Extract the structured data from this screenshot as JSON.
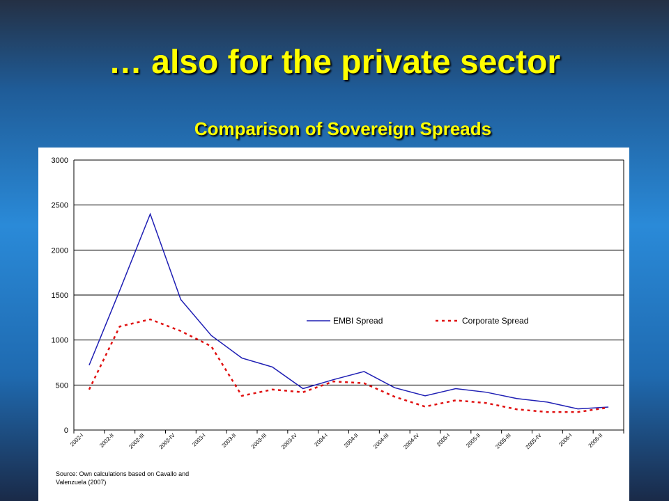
{
  "slide_title": "… also for the private sector",
  "chart_data": {
    "type": "line",
    "title": "Comparison of Sovereign Spreads",
    "categories": [
      "2002-I",
      "2002-II",
      "2002-III",
      "2002-IV",
      "2003-I",
      "2003-II",
      "2003-III",
      "2003-IV",
      "2004-I",
      "2004-II",
      "2004-III",
      "2004-IV",
      "2005-I",
      "2005-II",
      "2005-III",
      "2005-IV",
      "2006-I",
      "2006-II"
    ],
    "series": [
      {
        "name": "EMBI Spread",
        "color": "#1f1fb4",
        "dash": false,
        "values": [
          720,
          1550,
          2400,
          1450,
          1050,
          800,
          700,
          460,
          560,
          650,
          470,
          380,
          460,
          420,
          350,
          310,
          235,
          255
        ]
      },
      {
        "name": "Corporate Spread",
        "color": "#e01010",
        "dash": true,
        "values": [
          450,
          1150,
          1230,
          1100,
          930,
          380,
          450,
          420,
          540,
          520,
          370,
          260,
          330,
          300,
          230,
          200,
          200,
          250
        ]
      }
    ],
    "ylim": [
      0,
      3000
    ],
    "yticks": [
      0,
      500,
      1000,
      1500,
      2000,
      2500,
      3000
    ],
    "grid": true,
    "source": [
      "Source: Own calculations based on Cavallo and",
      "Valenzuela (2007)"
    ]
  }
}
